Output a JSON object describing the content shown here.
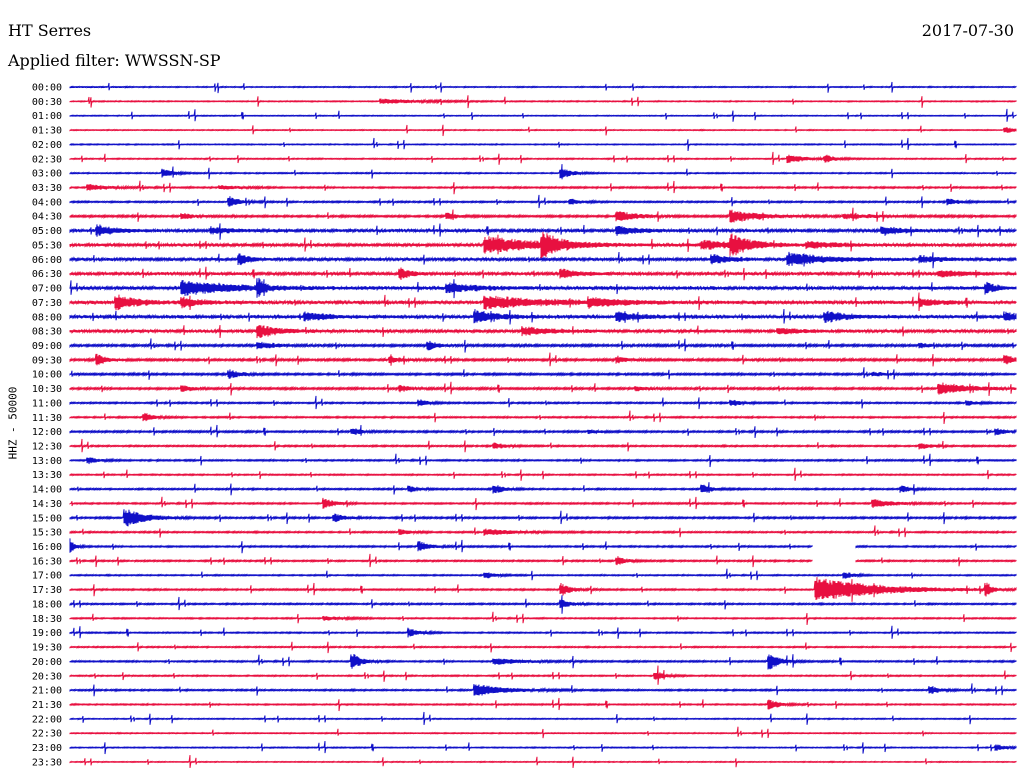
{
  "header": {
    "station": "HT Serres",
    "date": "2017-07-30",
    "filter": "Applied filter: WWSSN-SP"
  },
  "chart_data": {
    "type": "line",
    "title": "HT Serres",
    "ylabel": "HHZ - 50000",
    "tick_labels": [
      "00:00",
      "00:30",
      "01:00",
      "01:30",
      "02:00",
      "02:30",
      "03:00",
      "03:30",
      "04:00",
      "04:30",
      "05:00",
      "05:30",
      "06:00",
      "06:30",
      "07:00",
      "07:30",
      "08:00",
      "08:30",
      "09:00",
      "09:30",
      "10:00",
      "10:30",
      "11:00",
      "11:30",
      "12:00",
      "12:30",
      "13:00",
      "13:30",
      "14:00",
      "14:30",
      "15:00",
      "15:30",
      "16:00",
      "16:30",
      "17:00",
      "17:30",
      "18:00",
      "18:30",
      "19:00",
      "19:30",
      "20:00",
      "20:30",
      "21:00",
      "21:30",
      "22:00",
      "22:30",
      "23:00",
      "23:30"
    ],
    "colors": [
      "#1010c8",
      "#e81040"
    ],
    "traces": [
      {
        "noise": 0.4,
        "events": []
      },
      {
        "noise": 0.4,
        "events": [
          {
            "x": 0.33,
            "amp": 2.5,
            "w": 0.04
          }
        ]
      },
      {
        "noise": 0.35,
        "events": []
      },
      {
        "noise": 0.35,
        "events": [
          {
            "x": 0.99,
            "amp": 3,
            "w": 0.01
          }
        ]
      },
      {
        "noise": 0.4,
        "events": []
      },
      {
        "noise": 0.45,
        "events": [
          {
            "x": 0.76,
            "amp": 4,
            "w": 0.02
          },
          {
            "x": 0.8,
            "amp": 3,
            "w": 0.01
          }
        ]
      },
      {
        "noise": 0.45,
        "events": [
          {
            "x": 0.1,
            "amp": 4,
            "w": 0.01
          },
          {
            "x": 0.52,
            "amp": 6,
            "w": 0.01
          }
        ]
      },
      {
        "noise": 0.6,
        "events": [
          {
            "x": 0.02,
            "amp": 3,
            "w": 0.02
          },
          {
            "x": 0.16,
            "amp": 2,
            "w": 0.02
          }
        ]
      },
      {
        "noise": 0.6,
        "events": [
          {
            "x": 0.17,
            "amp": 5,
            "w": 0.01
          },
          {
            "x": 0.53,
            "amp": 3,
            "w": 0.01
          },
          {
            "x": 0.93,
            "amp": 3,
            "w": 0.01
          }
        ]
      },
      {
        "noise": 0.8,
        "events": [
          {
            "x": 0.12,
            "amp": 3,
            "w": 0.01
          },
          {
            "x": 0.4,
            "amp": 3,
            "w": 0.01
          },
          {
            "x": 0.58,
            "amp": 5,
            "w": 0.02
          },
          {
            "x": 0.7,
            "amp": 6,
            "w": 0.03
          },
          {
            "x": 0.82,
            "amp": 2,
            "w": 0.04
          }
        ]
      },
      {
        "noise": 1.2,
        "events": [
          {
            "x": 0.03,
            "amp": 5,
            "w": 0.02
          },
          {
            "x": 0.15,
            "amp": 3,
            "w": 0.02
          },
          {
            "x": 0.58,
            "amp": 4,
            "w": 0.02
          },
          {
            "x": 0.86,
            "amp": 4,
            "w": 0.02
          }
        ]
      },
      {
        "noise": 1.2,
        "events": [
          {
            "x": 0.44,
            "amp": 8,
            "w": 0.05
          },
          {
            "x": 0.5,
            "amp": 10,
            "w": 0.02
          },
          {
            "x": 0.67,
            "amp": 4,
            "w": 0.03
          },
          {
            "x": 0.7,
            "amp": 9,
            "w": 0.02
          },
          {
            "x": 0.78,
            "amp": 3,
            "w": 0.03
          }
        ]
      },
      {
        "noise": 1.2,
        "events": [
          {
            "x": 0.18,
            "amp": 5,
            "w": 0.01
          },
          {
            "x": 0.68,
            "amp": 4,
            "w": 0.02
          },
          {
            "x": 0.76,
            "amp": 6,
            "w": 0.04
          },
          {
            "x": 0.9,
            "amp": 3,
            "w": 0.02
          }
        ]
      },
      {
        "noise": 1.2,
        "events": [
          {
            "x": 0.35,
            "amp": 5,
            "w": 0.01
          },
          {
            "x": 0.52,
            "amp": 4,
            "w": 0.02
          },
          {
            "x": 0.92,
            "amp": 3,
            "w": 0.03
          }
        ]
      },
      {
        "noise": 1.4,
        "events": [
          {
            "x": 0.12,
            "amp": 7,
            "w": 0.05
          },
          {
            "x": 0.2,
            "amp": 8,
            "w": 0.005
          },
          {
            "x": 0.4,
            "amp": 4,
            "w": 0.03
          },
          {
            "x": 0.97,
            "amp": 5,
            "w": 0.01
          }
        ]
      },
      {
        "noise": 1.4,
        "events": [
          {
            "x": 0.05,
            "amp": 7,
            "w": 0.02
          },
          {
            "x": 0.12,
            "amp": 4,
            "w": 0.02
          },
          {
            "x": 0.44,
            "amp": 6,
            "w": 0.06
          },
          {
            "x": 0.55,
            "amp": 4,
            "w": 0.03
          },
          {
            "x": 0.9,
            "amp": 3,
            "w": 0.02
          }
        ]
      },
      {
        "noise": 1.4,
        "events": [
          {
            "x": 0.25,
            "amp": 4,
            "w": 0.02
          },
          {
            "x": 0.43,
            "amp": 6,
            "w": 0.02
          },
          {
            "x": 0.58,
            "amp": 4,
            "w": 0.02
          },
          {
            "x": 0.8,
            "amp": 5,
            "w": 0.02
          },
          {
            "x": 0.99,
            "amp": 4,
            "w": 0.01
          }
        ]
      },
      {
        "noise": 1.2,
        "events": [
          {
            "x": 0.2,
            "amp": 6,
            "w": 0.02
          },
          {
            "x": 0.48,
            "amp": 4,
            "w": 0.03
          },
          {
            "x": 0.75,
            "amp": 3,
            "w": 0.02
          }
        ]
      },
      {
        "noise": 0.9,
        "events": [
          {
            "x": 0.2,
            "amp": 3,
            "w": 0.02
          },
          {
            "x": 0.38,
            "amp": 4,
            "w": 0.01
          },
          {
            "x": 0.9,
            "amp": 2,
            "w": 0.01
          }
        ]
      },
      {
        "noise": 0.9,
        "events": [
          {
            "x": 0.03,
            "amp": 5,
            "w": 0.01
          },
          {
            "x": 0.34,
            "amp": 3,
            "w": 0.01
          },
          {
            "x": 0.58,
            "amp": 3,
            "w": 0.01
          },
          {
            "x": 0.99,
            "amp": 4,
            "w": 0.01
          }
        ]
      },
      {
        "noise": 0.8,
        "events": [
          {
            "x": 0.17,
            "amp": 4,
            "w": 0.01
          },
          {
            "x": 0.85,
            "amp": 2,
            "w": 0.01
          }
        ]
      },
      {
        "noise": 0.8,
        "events": [
          {
            "x": 0.12,
            "amp": 3,
            "w": 0.01
          },
          {
            "x": 0.35,
            "amp": 3,
            "w": 0.01
          },
          {
            "x": 0.6,
            "amp": 2,
            "w": 0.01
          },
          {
            "x": 0.92,
            "amp": 6,
            "w": 0.03
          }
        ]
      },
      {
        "noise": 0.6,
        "events": [
          {
            "x": 0.37,
            "amp": 3,
            "w": 0.01
          },
          {
            "x": 0.7,
            "amp": 3,
            "w": 0.01
          },
          {
            "x": 0.95,
            "amp": 2,
            "w": 0.01
          }
        ]
      },
      {
        "noise": 0.6,
        "events": [
          {
            "x": 0.08,
            "amp": 4,
            "w": 0.01
          }
        ]
      },
      {
        "noise": 0.7,
        "events": [
          {
            "x": 0.3,
            "amp": 3,
            "w": 0.01
          },
          {
            "x": 0.55,
            "amp": 2,
            "w": 0.01
          },
          {
            "x": 0.98,
            "amp": 3,
            "w": 0.01
          }
        ]
      },
      {
        "noise": 0.6,
        "events": [
          {
            "x": 0.45,
            "amp": 3,
            "w": 0.01
          },
          {
            "x": 0.9,
            "amp": 3,
            "w": 0.01
          }
        ]
      },
      {
        "noise": 0.6,
        "events": [
          {
            "x": 0.02,
            "amp": 3,
            "w": 0.01
          }
        ]
      },
      {
        "noise": 0.5,
        "events": []
      },
      {
        "noise": 0.6,
        "events": [
          {
            "x": 0.36,
            "amp": 3,
            "w": 0.01
          },
          {
            "x": 0.45,
            "amp": 4,
            "w": 0.01
          },
          {
            "x": 0.67,
            "amp": 4,
            "w": 0.01
          },
          {
            "x": 0.88,
            "amp": 3,
            "w": 0.01
          }
        ]
      },
      {
        "noise": 0.6,
        "events": [
          {
            "x": 0.27,
            "amp": 5,
            "w": 0.01
          },
          {
            "x": 0.85,
            "amp": 4,
            "w": 0.02
          }
        ]
      },
      {
        "noise": 0.7,
        "events": [
          {
            "x": 0.06,
            "amp": 9,
            "w": 0.02
          },
          {
            "x": 0.28,
            "amp": 4,
            "w": 0.01
          }
        ]
      },
      {
        "noise": 0.6,
        "events": [
          {
            "x": 0.35,
            "amp": 3,
            "w": 0.01
          },
          {
            "x": 0.44,
            "amp": 3,
            "w": 0.03
          }
        ]
      },
      {
        "noise": 0.6,
        "events": [
          {
            "x": 0.0,
            "amp": 8,
            "w": 0.005
          },
          {
            "x": 0.37,
            "amp": 5,
            "w": 0.01
          }
        ],
        "gap": [
          0.785,
          0.83
        ]
      },
      {
        "noise": 0.6,
        "events": [
          {
            "x": 0.58,
            "amp": 4,
            "w": 0.01
          }
        ],
        "gap": [
          0.785,
          0.83
        ]
      },
      {
        "noise": 0.5,
        "events": [
          {
            "x": 0.44,
            "amp": 3,
            "w": 0.01
          },
          {
            "x": 0.82,
            "amp": 3,
            "w": 0.01
          }
        ]
      },
      {
        "noise": 0.6,
        "events": [
          {
            "x": 0.52,
            "amp": 6,
            "w": 0.01
          },
          {
            "x": 0.79,
            "amp": 12,
            "w": 0.06
          },
          {
            "x": 0.97,
            "amp": 6,
            "w": 0.005
          }
        ]
      },
      {
        "noise": 0.6,
        "events": [
          {
            "x": 0.52,
            "amp": 4,
            "w": 0.01
          }
        ]
      },
      {
        "noise": 0.5,
        "events": [
          {
            "x": 0.27,
            "amp": 2,
            "w": 0.02
          }
        ]
      },
      {
        "noise": 0.5,
        "events": [
          {
            "x": 0.36,
            "amp": 4,
            "w": 0.01
          }
        ]
      },
      {
        "noise": 0.5,
        "events": []
      },
      {
        "noise": 0.6,
        "events": [
          {
            "x": 0.3,
            "amp": 7,
            "w": 0.01
          },
          {
            "x": 0.45,
            "amp": 3,
            "w": 0.03
          },
          {
            "x": 0.74,
            "amp": 8,
            "w": 0.01
          }
        ]
      },
      {
        "noise": 0.5,
        "events": [
          {
            "x": 0.62,
            "amp": 4,
            "w": 0.01
          }
        ]
      },
      {
        "noise": 0.6,
        "events": [
          {
            "x": 0.43,
            "amp": 6,
            "w": 0.03
          },
          {
            "x": 0.91,
            "amp": 4,
            "w": 0.01
          }
        ]
      },
      {
        "noise": 0.5,
        "events": [
          {
            "x": 0.74,
            "amp": 5,
            "w": 0.01
          }
        ]
      },
      {
        "noise": 0.4,
        "events": []
      },
      {
        "noise": 0.4,
        "events": []
      },
      {
        "noise": 0.4,
        "events": [
          {
            "x": 0.98,
            "amp": 3,
            "w": 0.01
          }
        ]
      },
      {
        "noise": 0.35,
        "events": []
      }
    ]
  }
}
